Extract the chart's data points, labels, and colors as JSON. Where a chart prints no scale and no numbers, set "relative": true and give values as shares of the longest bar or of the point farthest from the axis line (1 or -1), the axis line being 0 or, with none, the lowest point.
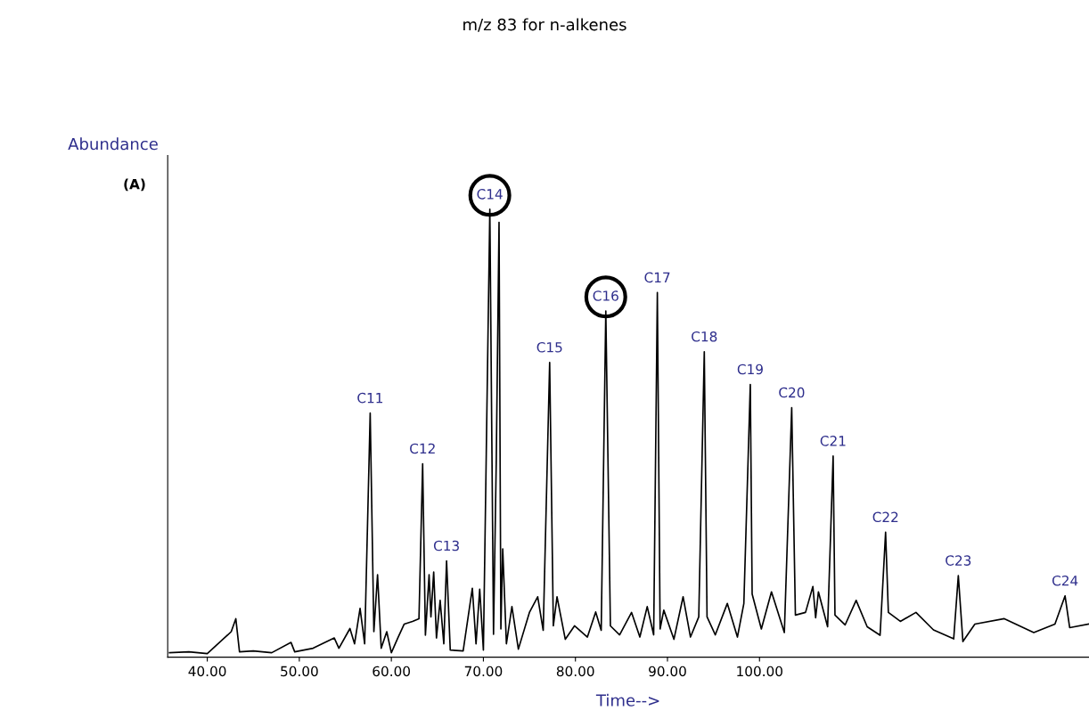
{
  "chart_data": {
    "type": "line",
    "title": "m/z 83 for n-alkenes",
    "ylabel": "Abundance",
    "xlabel": "Time-->",
    "relative": true,
    "tick_labels": "x",
    "grid": false,
    "legend": false,
    "marker": "none",
    "line_style": "solid",
    "xlim": [
      35.7,
      135.8
    ],
    "xticks": [
      {
        "value": 40,
        "label": "40.00"
      },
      {
        "value": 50,
        "label": "50.00"
      },
      {
        "value": 60,
        "label": "60.00"
      },
      {
        "value": 70,
        "label": "70.00"
      },
      {
        "value": 80,
        "label": "80.00"
      },
      {
        "value": 90,
        "label": "90.00"
      },
      {
        "value": 100,
        "label": "100.00"
      }
    ],
    "series": [
      {
        "color": "#000000",
        "x": [
          35.9,
          38,
          40,
          42.6,
          43.1,
          43.5,
          45,
          47,
          49.1,
          49.5,
          51.5,
          53.8,
          54.3,
          55.5,
          56.0,
          56.6,
          57.1,
          57.7,
          58.1,
          58.5,
          58.9,
          59.5,
          60.0,
          60.7,
          61.4,
          62.3,
          63.0,
          63.4,
          63.7,
          64.1,
          64.3,
          64.6,
          64.9,
          65.3,
          65.7,
          66.0,
          66.4,
          67.8,
          68.8,
          69.2,
          69.6,
          70.0,
          70.7,
          71.1,
          71.4,
          71.7,
          71.9,
          72.1,
          72.5,
          73.1,
          73.8,
          75.0,
          75.9,
          76.5,
          77.2,
          77.6,
          78.0,
          78.9,
          79.9,
          81.3,
          82.2,
          82.8,
          83.3,
          83.8,
          84.8,
          86.1,
          87.0,
          87.8,
          88.5,
          88.9,
          89.2,
          89.6,
          90.7,
          91.7,
          92.5,
          93.4,
          94.0,
          94.3,
          95.2,
          96.5,
          97.6,
          98.3,
          99.0,
          99.2,
          100.2,
          101.3,
          102.7,
          103.5,
          103.9,
          105.0,
          105.8,
          106.1,
          106.4,
          107.4,
          108.0,
          108.2,
          109.3,
          110.5,
          111.7,
          113.1,
          113.7,
          114.0,
          115.3,
          117.0,
          118.9,
          121.1,
          121.6,
          122.1,
          123.4,
          126.6,
          129.8,
          132.1,
          133.2,
          133.7,
          135.8
        ],
        "values": [
          0.01,
          0.012,
          0.008,
          0.057,
          0.086,
          0.012,
          0.014,
          0.01,
          0.033,
          0.012,
          0.02,
          0.043,
          0.02,
          0.064,
          0.03,
          0.109,
          0.03,
          0.545,
          0.057,
          0.184,
          0.02,
          0.057,
          0.01,
          0.043,
          0.074,
          0.08,
          0.086,
          0.432,
          0.049,
          0.184,
          0.09,
          0.19,
          0.043,
          0.127,
          0.03,
          0.215,
          0.016,
          0.014,
          0.154,
          0.03,
          0.152,
          0.016,
          1.0,
          0.051,
          0.441,
          0.971,
          0.063,
          0.242,
          0.03,
          0.113,
          0.018,
          0.1,
          0.135,
          0.06,
          0.658,
          0.07,
          0.135,
          0.04,
          0.07,
          0.045,
          0.101,
          0.06,
          0.773,
          0.07,
          0.05,
          0.1,
          0.045,
          0.113,
          0.05,
          0.814,
          0.063,
          0.105,
          0.04,
          0.135,
          0.045,
          0.09,
          0.682,
          0.09,
          0.05,
          0.12,
          0.045,
          0.12,
          0.609,
          0.141,
          0.063,
          0.146,
          0.055,
          0.557,
          0.094,
          0.1,
          0.158,
          0.088,
          0.146,
          0.068,
          0.449,
          0.094,
          0.072,
          0.127,
          0.068,
          0.049,
          0.279,
          0.1,
          0.08,
          0.1,
          0.061,
          0.041,
          0.182,
          0.035,
          0.074,
          0.086,
          0.055,
          0.074,
          0.137,
          0.066,
          0.074
        ]
      }
    ],
    "annotations": [
      "(A)",
      {
        "text": "C11",
        "x": 57.7,
        "y": 0.545
      },
      {
        "text": "C12",
        "x": 63.4,
        "y": 0.432
      },
      {
        "text": "C13",
        "x": 66.0,
        "y": 0.215
      },
      {
        "text": "C14",
        "x": 70.7,
        "y": 1.0
      },
      {
        "text": "C15",
        "x": 77.2,
        "y": 0.658
      },
      {
        "text": "C16",
        "x": 83.3,
        "y": 0.773
      },
      {
        "text": "C17",
        "x": 88.9,
        "y": 0.814
      },
      {
        "text": "C18",
        "x": 94.0,
        "y": 0.682
      },
      {
        "text": "C19",
        "x": 99.0,
        "y": 0.609
      },
      {
        "text": "C20",
        "x": 103.5,
        "y": 0.557
      },
      {
        "text": "C21",
        "x": 108.0,
        "y": 0.449
      },
      {
        "text": "C22",
        "x": 113.7,
        "y": 0.279
      },
      {
        "text": "C23",
        "x": 121.6,
        "y": 0.182
      },
      {
        "text": "C24",
        "x": 133.2,
        "y": 0.137
      }
    ]
  }
}
